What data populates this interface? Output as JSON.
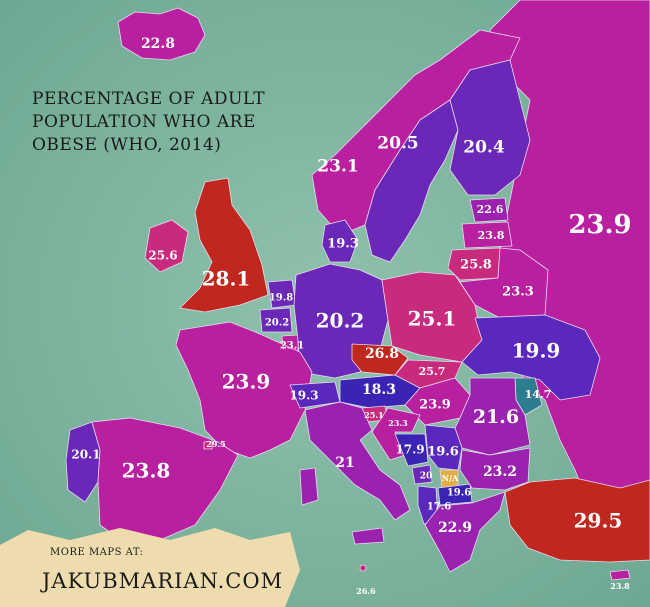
{
  "title_lines": [
    "PERCENTAGE OF ADULT",
    "POPULATION WHO ARE",
    "OBESE (WHO, 2014)"
  ],
  "credit": {
    "small": "MORE MAPS AT:",
    "big": "JAKUBMARIAN.COM"
  },
  "colors": {
    "sea": "#7fb3a0",
    "scale_low": "#2f1fa3",
    "scale_mid": "#b01a9a",
    "scale_high": "#c0271f",
    "no_data": "#e0ae45",
    "credit_banner": "#efdcae"
  },
  "countries": [
    {
      "id": "iceland",
      "value": "22.8"
    },
    {
      "id": "norway",
      "value": "23.1"
    },
    {
      "id": "sweden",
      "value": "20.5"
    },
    {
      "id": "finland",
      "value": "20.4"
    },
    {
      "id": "russia",
      "value": "23.9"
    },
    {
      "id": "estonia",
      "value": "22.6"
    },
    {
      "id": "latvia",
      "value": "23.8"
    },
    {
      "id": "lithuania",
      "value": "25.8"
    },
    {
      "id": "belarus",
      "value": "23.3"
    },
    {
      "id": "denmark",
      "value": "19.3"
    },
    {
      "id": "ireland",
      "value": "25.6"
    },
    {
      "id": "uk",
      "value": "28.1"
    },
    {
      "id": "netherlands",
      "value": "19.8"
    },
    {
      "id": "belgium",
      "value": "20.2"
    },
    {
      "id": "luxembourg",
      "value": "23.1"
    },
    {
      "id": "germany",
      "value": "20.2"
    },
    {
      "id": "poland",
      "value": "25.1"
    },
    {
      "id": "ukraine",
      "value": "19.9"
    },
    {
      "id": "france",
      "value": "23.9"
    },
    {
      "id": "czechia",
      "value": "26.8"
    },
    {
      "id": "slovakia",
      "value": "25.7"
    },
    {
      "id": "austria",
      "value": "18.3"
    },
    {
      "id": "switzerland",
      "value": "19.3"
    },
    {
      "id": "hungary",
      "value": "23.9"
    },
    {
      "id": "moldova",
      "value": "14.7"
    },
    {
      "id": "romania",
      "value": "21.6"
    },
    {
      "id": "slovenia",
      "value": "25.1"
    },
    {
      "id": "croatia",
      "value": "23.3"
    },
    {
      "id": "bosnia",
      "value": "17.9"
    },
    {
      "id": "serbia",
      "value": "19.6"
    },
    {
      "id": "montenegro",
      "value": "20"
    },
    {
      "id": "kosovo",
      "value": "N/A"
    },
    {
      "id": "macedonia",
      "value": "19.6"
    },
    {
      "id": "albania",
      "value": "17.6"
    },
    {
      "id": "bulgaria",
      "value": "23.2"
    },
    {
      "id": "greece",
      "value": "22.9"
    },
    {
      "id": "turkey",
      "value": "29.5"
    },
    {
      "id": "portugal",
      "value": "20.1"
    },
    {
      "id": "spain",
      "value": "23.8"
    },
    {
      "id": "andorra",
      "value": "29.5"
    },
    {
      "id": "italy",
      "value": "21"
    },
    {
      "id": "malta",
      "value": "26.6"
    },
    {
      "id": "cyprus",
      "value": "23.8"
    }
  ]
}
